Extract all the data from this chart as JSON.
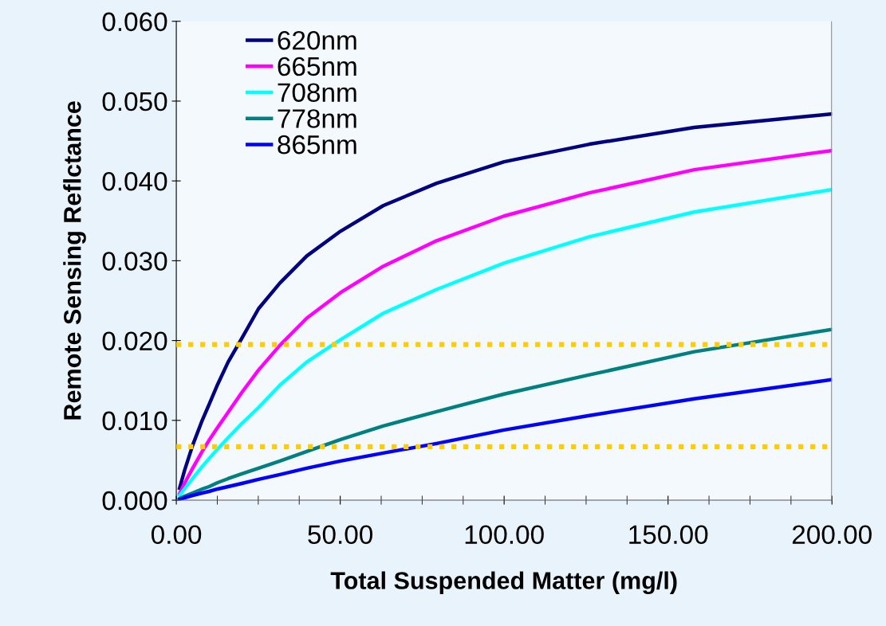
{
  "chart_data": {
    "type": "line",
    "xlabel": "Total Suspended Matter (mg/l)",
    "ylabel": "Remote Sensing Reflctance",
    "x": [
      1,
      2.5,
      5,
      7.9,
      10,
      12.6,
      15.8,
      20,
      25.1,
      31.6,
      39.8,
      50.1,
      63.1,
      79.4,
      100,
      126,
      158,
      200
    ],
    "series": [
      {
        "name": "620nm",
        "color": "#000080",
        "values": [
          0.0015,
          0.0037,
          0.0069,
          0.01,
          0.012,
          0.0145,
          0.0173,
          0.0203,
          0.024,
          0.0272,
          0.0306,
          0.0337,
          0.0369,
          0.0397,
          0.0424,
          0.0446,
          0.0467,
          0.0484
        ]
      },
      {
        "name": "665nm",
        "color": "#ff00ff",
        "values": [
          0.0008,
          0.0021,
          0.004,
          0.0061,
          0.0075,
          0.0091,
          0.011,
          0.0135,
          0.0163,
          0.0194,
          0.0228,
          0.026,
          0.0293,
          0.0325,
          0.0356,
          0.0385,
          0.0414,
          0.0438
        ]
      },
      {
        "name": "708nm",
        "color": "#00ffff",
        "values": [
          0.0006,
          0.0014,
          0.0027,
          0.0042,
          0.0052,
          0.0064,
          0.0078,
          0.0096,
          0.0116,
          0.0144,
          0.0173,
          0.0201,
          0.0234,
          0.0264,
          0.0297,
          0.033,
          0.0361,
          0.0389
        ]
      },
      {
        "name": "778nm",
        "color": "#008080",
        "values": [
          0.0002,
          0.0005,
          0.0009,
          0.0014,
          0.0017,
          0.0022,
          0.0027,
          0.0033,
          0.004,
          0.0049,
          0.0061,
          0.0076,
          0.0093,
          0.0111,
          0.0133,
          0.0157,
          0.0186,
          0.0214
        ]
      },
      {
        "name": "865nm",
        "color": "#0000ff",
        "values": [
          0.0001,
          0.0003,
          0.0006,
          0.0009,
          0.0011,
          0.0014,
          0.0017,
          0.0021,
          0.0026,
          0.0032,
          0.004,
          0.0049,
          0.0059,
          0.0071,
          0.0088,
          0.0106,
          0.0127,
          0.0151
        ]
      }
    ],
    "xlim": [
      0,
      200
    ],
    "xticks": [
      {
        "value": 0,
        "label": "0.00"
      },
      {
        "value": 50,
        "label": "50.00"
      },
      {
        "value": 100,
        "label": "100.00"
      },
      {
        "value": 150,
        "label": "150.00"
      },
      {
        "value": 200,
        "label": "200.00"
      }
    ],
    "ylim": [
      0,
      0.06
    ],
    "yticks": [
      {
        "value": 0,
        "label": "0.000"
      },
      {
        "value": 0.01,
        "label": "0.010"
      },
      {
        "value": 0.02,
        "label": "0.020"
      },
      {
        "value": 0.03,
        "label": "0.030"
      },
      {
        "value": 0.04,
        "label": "0.040"
      },
      {
        "value": 0.05,
        "label": "0.050"
      },
      {
        "value": 0.06,
        "label": "0.060"
      }
    ],
    "ref_lines": [
      {
        "axis": "y",
        "value": 0.0195,
        "color": "#ffcc00",
        "line_style": "dotted"
      },
      {
        "axis": "y",
        "value": 0.0067,
        "color": "#ffcc00",
        "line_style": "dotted"
      }
    ],
    "legend": "top left",
    "grid": false,
    "marker": "none",
    "line_style": "solid"
  }
}
